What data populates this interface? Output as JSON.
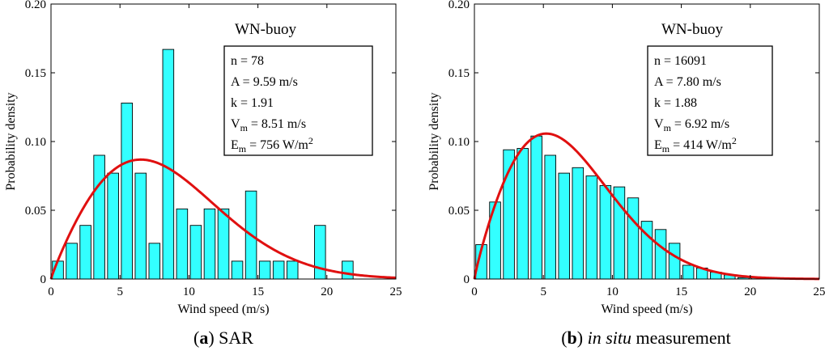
{
  "chart_data": [
    {
      "type": "bar",
      "panel_letter": "a",
      "caption_text": "SAR",
      "site": "WN-buoy",
      "xlabel": "Wind speed (m/s)",
      "ylabel": "Probability density",
      "xlim": [
        0,
        25
      ],
      "ylim": [
        0,
        0.2
      ],
      "xticks": [
        "0",
        "5",
        "10",
        "15",
        "20",
        "25"
      ],
      "yticks": [
        "0",
        "0.05",
        "0.10",
        "0.15",
        "0.20"
      ],
      "bar_width": 0.8,
      "bars": {
        "x": [
          0.5,
          1.5,
          2.5,
          3.5,
          4.5,
          5.5,
          6.5,
          7.5,
          8.5,
          9.5,
          10.5,
          11.5,
          12.5,
          13.5,
          14.5,
          15.5,
          16.5,
          17.5,
          18.5,
          19.5,
          20.5,
          21.5
        ],
        "values": [
          0.013,
          0.026,
          0.039,
          0.09,
          0.077,
          0.128,
          0.077,
          0.026,
          0.167,
          0.051,
          0.039,
          0.051,
          0.051,
          0.013,
          0.064,
          0.013,
          0.013,
          0.013,
          0,
          0.039,
          0,
          0.013
        ]
      },
      "weibull": {
        "k": 1.91,
        "A": 9.59
      },
      "stats": [
        {
          "lhs": "n",
          "sub": "",
          "rhs": " = 78",
          "sup": ""
        },
        {
          "lhs": "A",
          "sub": "",
          "rhs": " = 9.59 m/s",
          "sup": ""
        },
        {
          "lhs": "k",
          "sub": "",
          "rhs": " = 1.91",
          "sup": ""
        },
        {
          "lhs": "V",
          "sub": "m",
          "rhs": " = 8.51 m/s",
          "sup": ""
        },
        {
          "lhs": "E",
          "sub": "m",
          "rhs": " = 756 W/m",
          "sup": "2"
        }
      ],
      "colors": {
        "bar": "#33ffff",
        "curve": "#e01010"
      }
    },
    {
      "type": "bar",
      "panel_letter": "b",
      "caption_italic": "in situ",
      "caption_text": " measurement",
      "site": "WN-buoy",
      "xlabel": "Wind speed (m/s)",
      "ylabel": "Probability density",
      "xlim": [
        0,
        25
      ],
      "ylim": [
        0,
        0.2
      ],
      "xticks": [
        "0",
        "5",
        "10",
        "15",
        "20",
        "25"
      ],
      "yticks": [
        "0",
        "0.05",
        "0.10",
        "0.15",
        "0.20"
      ],
      "bar_width": 0.8,
      "bars": {
        "x": [
          0.5,
          1.5,
          2.5,
          3.5,
          4.5,
          5.5,
          6.5,
          7.5,
          8.5,
          9.5,
          10.5,
          11.5,
          12.5,
          13.5,
          14.5,
          15.5,
          16.5,
          17.5,
          18.5,
          19.5,
          20.5,
          21.5,
          22.5,
          23.5,
          24.5
        ],
        "values": [
          0.025,
          0.056,
          0.094,
          0.095,
          0.104,
          0.09,
          0.077,
          0.081,
          0.075,
          0.068,
          0.067,
          0.059,
          0.042,
          0.036,
          0.026,
          0.01,
          0.008,
          0.005,
          0.003,
          0.001,
          0.001,
          0.001,
          0,
          0,
          0
        ]
      },
      "weibull": {
        "k": 1.88,
        "A": 7.8
      },
      "stats": [
        {
          "lhs": "n",
          "sub": "",
          "rhs": " = 16091",
          "sup": ""
        },
        {
          "lhs": "A",
          "sub": "",
          "rhs": " = 7.80 m/s",
          "sup": ""
        },
        {
          "lhs": "k",
          "sub": "",
          "rhs": " = 1.88",
          "sup": ""
        },
        {
          "lhs": "V",
          "sub": "m",
          "rhs": " = 6.92 m/s",
          "sup": ""
        },
        {
          "lhs": "E",
          "sub": "m",
          "rhs": " = 414 W/m",
          "sup": "2"
        }
      ],
      "colors": {
        "bar": "#33ffff",
        "curve": "#e01010"
      }
    }
  ]
}
